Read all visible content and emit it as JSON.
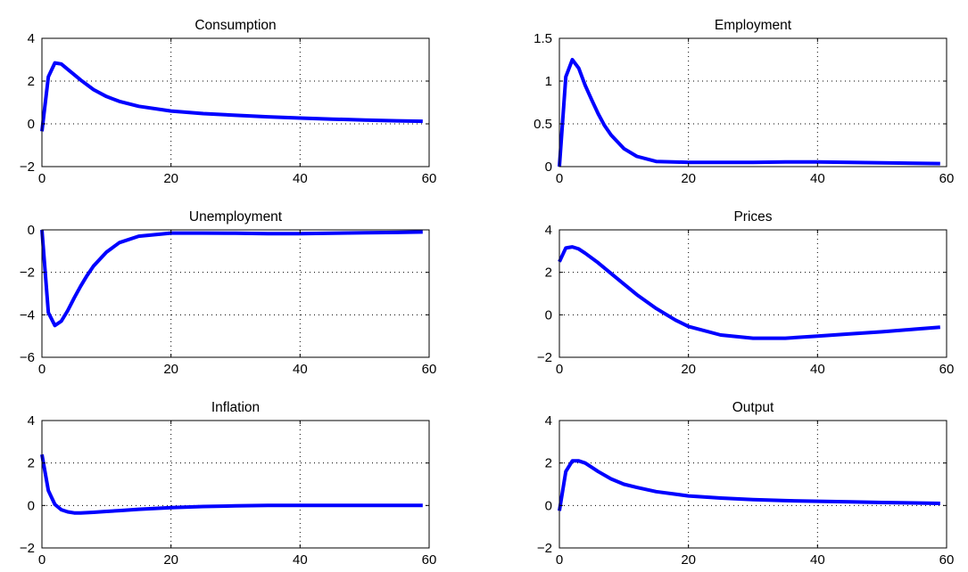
{
  "chart_data": [
    {
      "type": "line",
      "title": "Consumption",
      "xlabel": "",
      "ylabel": "",
      "xlim": [
        0,
        60
      ],
      "ylim": [
        -2,
        4
      ],
      "xticks": [
        0,
        20,
        40,
        60
      ],
      "yticks": [
        -2,
        0,
        2,
        4
      ],
      "grid": true,
      "legend": "none",
      "line_color": "#0000ff",
      "series": [
        {
          "x": [
            0,
            1,
            2,
            3,
            4,
            5,
            6,
            8,
            10,
            12,
            15,
            20,
            25,
            30,
            35,
            40,
            45,
            50,
            55,
            59
          ],
          "values": [
            -0.35,
            2.2,
            2.85,
            2.8,
            2.55,
            2.3,
            2.05,
            1.6,
            1.28,
            1.05,
            0.82,
            0.6,
            0.48,
            0.4,
            0.33,
            0.27,
            0.22,
            0.18,
            0.14,
            0.12
          ]
        }
      ]
    },
    {
      "type": "line",
      "title": "Employment",
      "xlabel": "",
      "ylabel": "",
      "xlim": [
        0,
        60
      ],
      "ylim": [
        0,
        1.5
      ],
      "xticks": [
        0,
        20,
        40,
        60
      ],
      "yticks": [
        0,
        0.5,
        1,
        1.5
      ],
      "grid": true,
      "legend": "none",
      "line_color": "#0000ff",
      "series": [
        {
          "x": [
            0,
            1,
            2,
            3,
            4,
            5,
            6,
            7,
            8,
            10,
            12,
            15,
            20,
            25,
            30,
            35,
            40,
            45,
            50,
            55,
            59
          ],
          "values": [
            0,
            1.05,
            1.25,
            1.15,
            0.95,
            0.78,
            0.62,
            0.48,
            0.37,
            0.21,
            0.12,
            0.06,
            0.05,
            0.05,
            0.05,
            0.055,
            0.055,
            0.05,
            0.045,
            0.04,
            0.035
          ]
        }
      ]
    },
    {
      "type": "line",
      "title": "Unemployment",
      "xlabel": "",
      "ylabel": "",
      "xlim": [
        0,
        60
      ],
      "ylim": [
        -6,
        0
      ],
      "xticks": [
        0,
        20,
        40,
        60
      ],
      "yticks": [
        -6,
        -4,
        -2,
        0
      ],
      "grid": true,
      "legend": "none",
      "line_color": "#0000ff",
      "series": [
        {
          "x": [
            0,
            1,
            2,
            3,
            4,
            5,
            6,
            7,
            8,
            10,
            12,
            15,
            20,
            25,
            30,
            35,
            40,
            45,
            50,
            55,
            59
          ],
          "values": [
            0,
            -3.9,
            -4.5,
            -4.3,
            -3.8,
            -3.2,
            -2.65,
            -2.15,
            -1.7,
            -1.05,
            -0.6,
            -0.3,
            -0.15,
            -0.15,
            -0.16,
            -0.18,
            -0.18,
            -0.16,
            -0.14,
            -0.12,
            -0.1
          ]
        }
      ]
    },
    {
      "type": "line",
      "title": "Prices",
      "xlabel": "",
      "ylabel": "",
      "xlim": [
        0,
        60
      ],
      "ylim": [
        -2,
        4
      ],
      "xticks": [
        0,
        20,
        40,
        60
      ],
      "yticks": [
        -2,
        0,
        2,
        4
      ],
      "grid": true,
      "legend": "none",
      "line_color": "#0000ff",
      "series": [
        {
          "x": [
            0,
            1,
            2,
            3,
            4,
            6,
            8,
            10,
            12,
            15,
            18,
            20,
            25,
            30,
            35,
            40,
            45,
            50,
            55,
            59
          ],
          "values": [
            2.5,
            3.15,
            3.2,
            3.1,
            2.9,
            2.45,
            1.95,
            1.45,
            0.95,
            0.3,
            -0.25,
            -0.55,
            -0.95,
            -1.1,
            -1.1,
            -1.0,
            -0.9,
            -0.8,
            -0.68,
            -0.58
          ]
        }
      ]
    },
    {
      "type": "line",
      "title": "Inflation",
      "xlabel": "",
      "ylabel": "",
      "xlim": [
        0,
        60
      ],
      "ylim": [
        -2,
        4
      ],
      "xticks": [
        0,
        20,
        40,
        60
      ],
      "yticks": [
        -2,
        0,
        2,
        4
      ],
      "grid": true,
      "legend": "none",
      "line_color": "#0000ff",
      "series": [
        {
          "x": [
            0,
            1,
            2,
            3,
            4,
            5,
            6,
            8,
            10,
            12,
            15,
            20,
            25,
            30,
            35,
            40,
            45,
            50,
            55,
            59
          ],
          "values": [
            2.4,
            0.7,
            0.05,
            -0.2,
            -0.3,
            -0.35,
            -0.35,
            -0.32,
            -0.28,
            -0.24,
            -0.18,
            -0.1,
            -0.05,
            -0.02,
            0.0,
            0.0,
            0.0,
            0.0,
            0.0,
            0.0
          ]
        }
      ]
    },
    {
      "type": "line",
      "title": "Output",
      "xlabel": "",
      "ylabel": "",
      "xlim": [
        0,
        60
      ],
      "ylim": [
        -2,
        4
      ],
      "xticks": [
        0,
        20,
        40,
        60
      ],
      "yticks": [
        -2,
        0,
        2,
        4
      ],
      "grid": true,
      "legend": "none",
      "line_color": "#0000ff",
      "series": [
        {
          "x": [
            0,
            1,
            2,
            3,
            4,
            5,
            6,
            8,
            10,
            12,
            15,
            20,
            25,
            30,
            35,
            40,
            45,
            50,
            55,
            59
          ],
          "values": [
            -0.25,
            1.6,
            2.1,
            2.1,
            2.0,
            1.8,
            1.6,
            1.25,
            1.0,
            0.85,
            0.65,
            0.45,
            0.35,
            0.28,
            0.23,
            0.2,
            0.17,
            0.14,
            0.12,
            0.1
          ]
        }
      ]
    }
  ]
}
